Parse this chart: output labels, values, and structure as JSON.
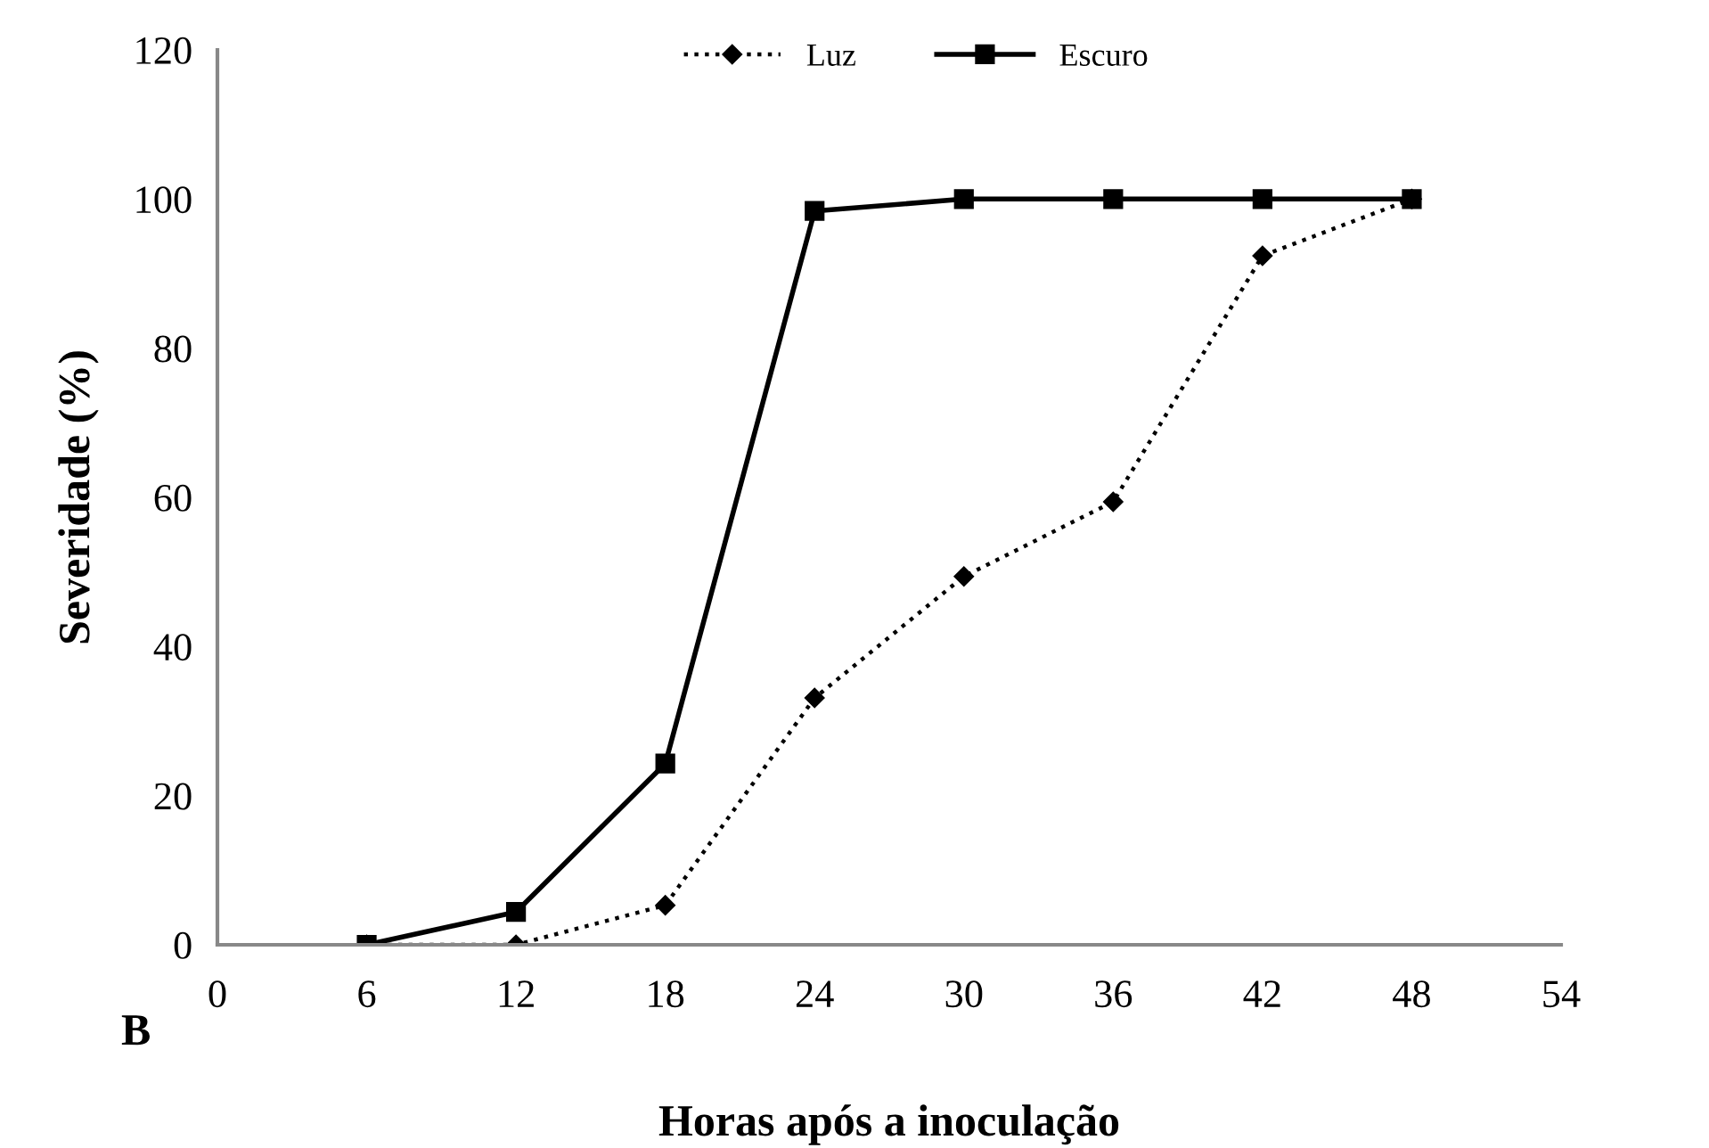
{
  "chart_data": {
    "type": "line",
    "xlabel": "Horas após a inoculação",
    "ylabel": "Severidade (%)",
    "x": [
      6,
      12,
      18,
      24,
      30,
      36,
      42,
      48
    ],
    "series": [
      {
        "name": "Luz",
        "color": "#000000",
        "marker": "diamond",
        "line_style": "dotted",
        "values": [
          0,
          0,
          5.3,
          33.1,
          49.4,
          59.4,
          92.4,
          100
        ]
      },
      {
        "name": "Escuro",
        "color": "#000000",
        "marker": "square",
        "line_style": "solid",
        "values": [
          0,
          4.4,
          24.3,
          98.4,
          100,
          100,
          100,
          100
        ]
      }
    ],
    "xlim": [
      0,
      54
    ],
    "xticks": [
      0,
      6,
      12,
      18,
      24,
      30,
      36,
      42,
      48,
      54
    ],
    "ylim": [
      0,
      120
    ],
    "yticks": [
      0,
      20,
      40,
      60,
      80,
      100,
      120
    ],
    "grid": false,
    "legend": "top",
    "annotations": [
      "B"
    ]
  }
}
